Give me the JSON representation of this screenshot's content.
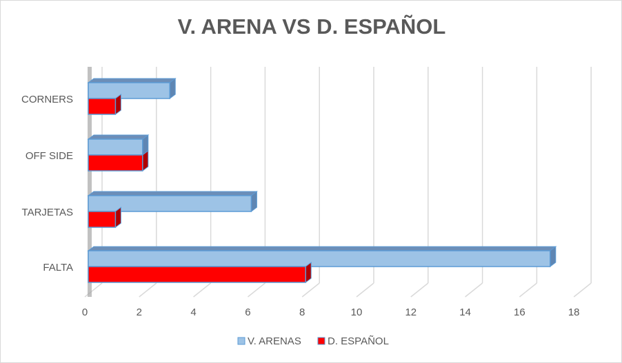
{
  "chart_data": {
    "type": "bar",
    "orientation": "horizontal",
    "style": "3d-clustered",
    "title": "V. ARENA VS D. ESPAÑOL",
    "categories": [
      "CORNERS",
      "OFF SIDE",
      "TARJETAS",
      "FALTA"
    ],
    "series": [
      {
        "name": "V. ARENAS",
        "values": [
          3,
          2,
          6,
          17
        ],
        "color": "#9DC3E6"
      },
      {
        "name": "D. ESPAÑOL",
        "values": [
          1,
          2,
          1,
          8
        ],
        "color": "#FF0000"
      }
    ],
    "xlim": [
      0,
      18
    ],
    "xticks": [
      "0",
      "2",
      "4",
      "6",
      "8",
      "10",
      "12",
      "14",
      "16",
      "18"
    ],
    "grid": true,
    "legend": "bottom"
  }
}
